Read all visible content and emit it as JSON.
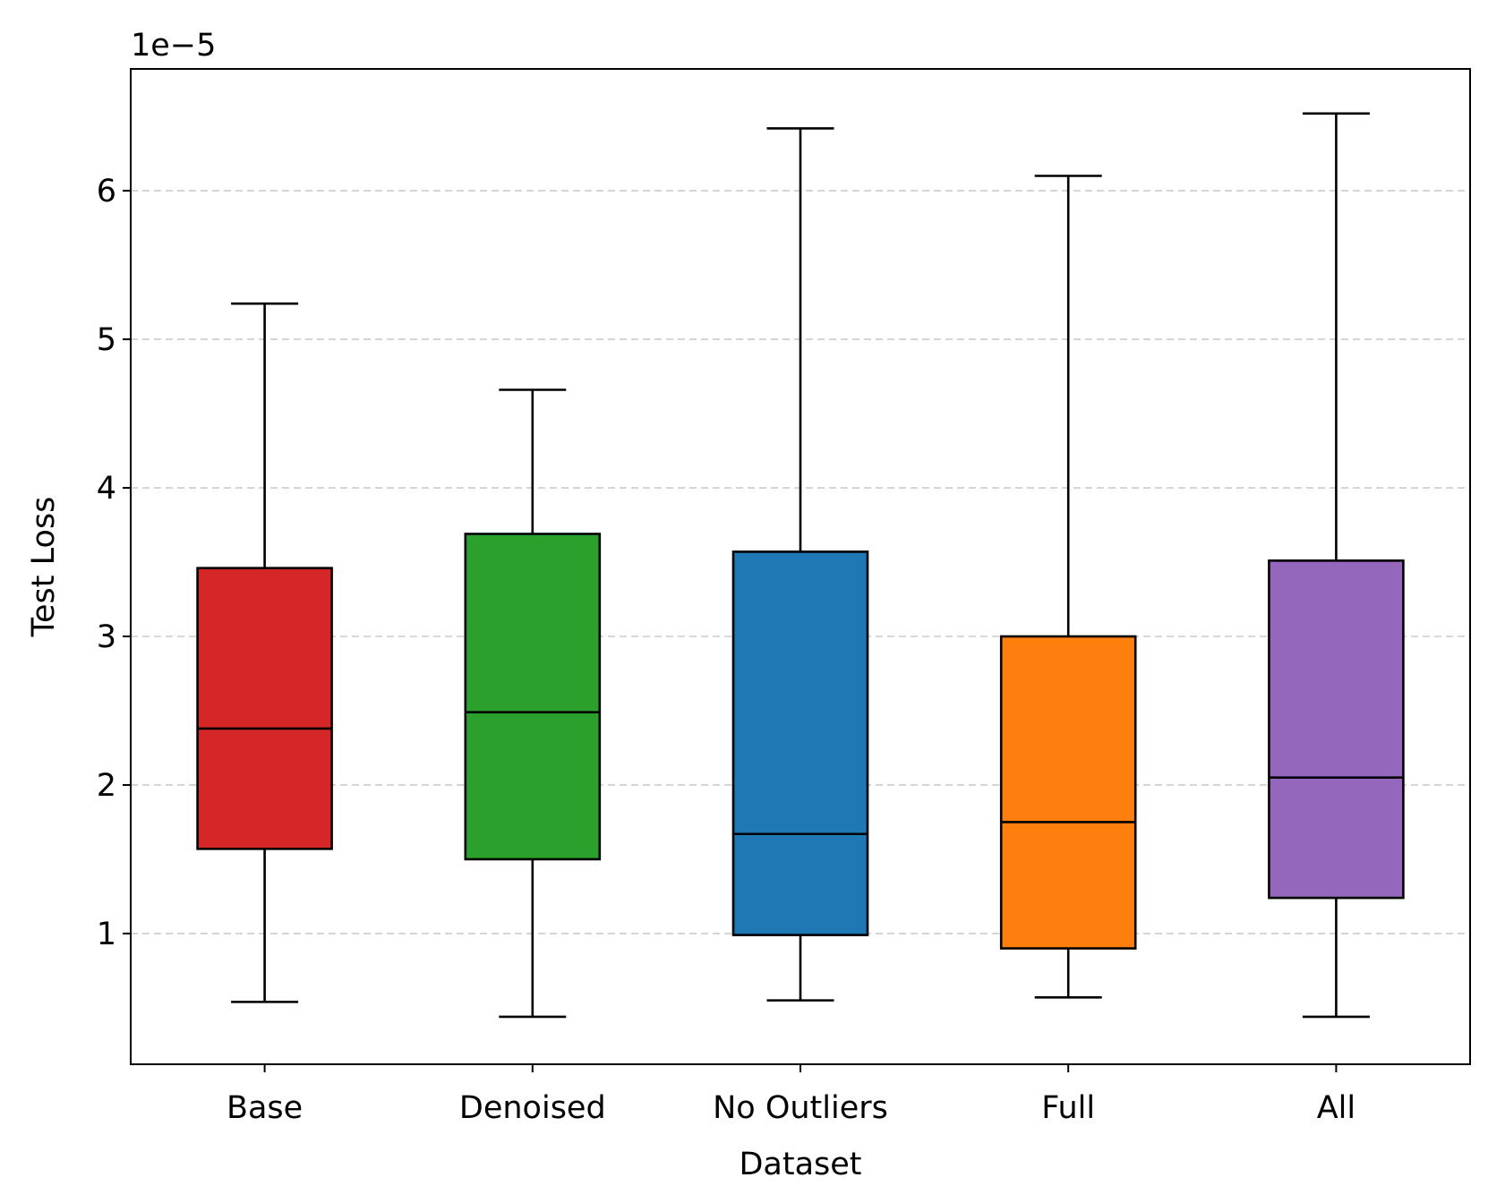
{
  "chart_data": {
    "type": "box",
    "xlabel": "Dataset",
    "ylabel": "Test Loss",
    "offset_text": "1e−5",
    "y_scale": "1e-5",
    "ylim": [
      0.12,
      6.82
    ],
    "yticks": [
      1,
      2,
      3,
      4,
      5,
      6
    ],
    "ytick_labels": [
      "1",
      "2",
      "3",
      "4",
      "5",
      "6"
    ],
    "grid": "y dashed",
    "categories": [
      "Base",
      "Denoised",
      "No Outliers",
      "Full",
      "All"
    ],
    "boxes": [
      {
        "label": "Base",
        "whisker_low": 0.54,
        "q1": 1.57,
        "median": 2.38,
        "q3": 3.46,
        "whisker_high": 5.24,
        "color": "#d62728"
      },
      {
        "label": "Denoised",
        "whisker_low": 0.44,
        "q1": 1.5,
        "median": 2.49,
        "q3": 3.69,
        "whisker_high": 4.66,
        "color": "#2ca02c"
      },
      {
        "label": "No Outliers",
        "whisker_low": 0.55,
        "q1": 0.99,
        "median": 1.67,
        "q3": 3.57,
        "whisker_high": 6.42,
        "color": "#1f77b4"
      },
      {
        "label": "Full",
        "whisker_low": 0.57,
        "q1": 0.9,
        "median": 1.75,
        "q3": 3.0,
        "whisker_high": 6.1,
        "color": "#ff7f0e"
      },
      {
        "label": "All",
        "whisker_low": 0.44,
        "q1": 1.24,
        "median": 2.05,
        "q3": 3.51,
        "whisker_high": 6.52,
        "color": "#9467bd"
      }
    ]
  }
}
